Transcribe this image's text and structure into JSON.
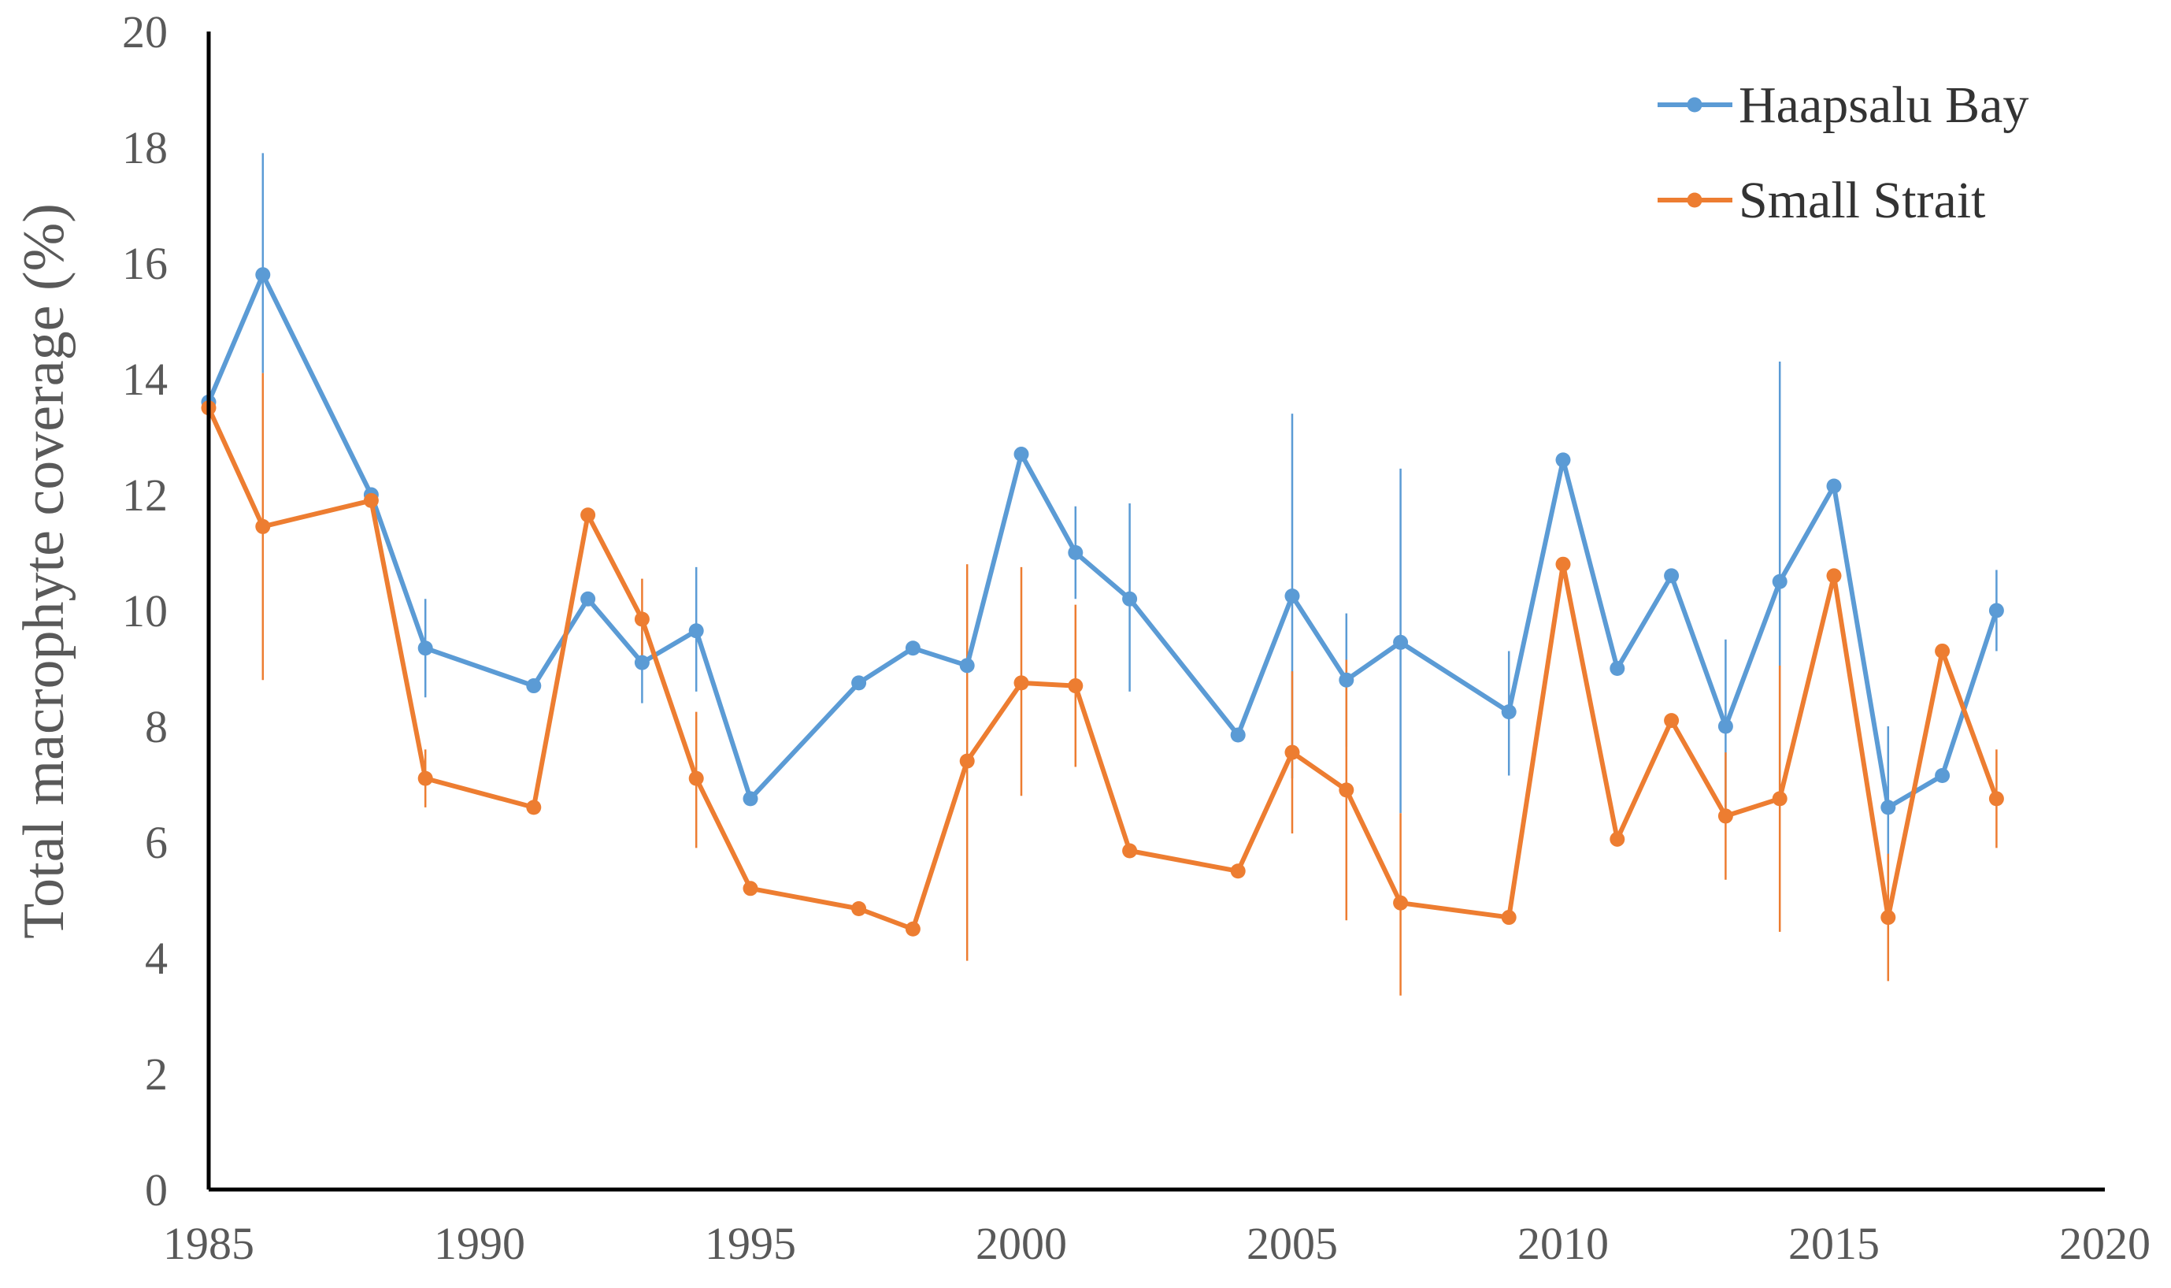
{
  "chart_data": {
    "type": "line",
    "title": "",
    "xlabel": "",
    "ylabel": "Total macrophyte coverage  (%)",
    "xlim": [
      1985,
      2020
    ],
    "ylim": [
      0,
      20
    ],
    "x_ticks": [
      "1985",
      "1990",
      "1995",
      "2000",
      "2005",
      "2010",
      "2015",
      "2020"
    ],
    "y_ticks": [
      "0",
      "2",
      "4",
      "6",
      "8",
      "10",
      "12",
      "14",
      "16",
      "18",
      "20"
    ],
    "grid": false,
    "legend_position": "top-right",
    "error_bars": true,
    "series": [
      {
        "name": "Haapsalu Bay",
        "color": "#5B9BD5",
        "points": [
          {
            "x": 1985,
            "y": 13.6
          },
          {
            "x": 1986,
            "y": 15.8,
            "err_low": 14.1,
            "err_high": 17.9
          },
          {
            "x": 1988,
            "y": 12.0
          },
          {
            "x": 1989,
            "y": 9.35,
            "err_low": 8.5,
            "err_high": 10.2
          },
          {
            "x": 1991,
            "y": 8.7
          },
          {
            "x": 1992,
            "y": 10.2
          },
          {
            "x": 1993,
            "y": 9.1,
            "err_low": 8.4,
            "err_high": 9.8
          },
          {
            "x": 1994,
            "y": 9.65,
            "err_low": 8.6,
            "err_high": 10.75
          },
          {
            "x": 1995,
            "y": 6.75
          },
          {
            "x": 1997,
            "y": 8.75
          },
          {
            "x": 1998,
            "y": 9.35
          },
          {
            "x": 1999,
            "y": 9.05
          },
          {
            "x": 2000,
            "y": 12.7
          },
          {
            "x": 2001,
            "y": 11.0,
            "err_low": 10.2,
            "err_high": 11.8
          },
          {
            "x": 2002,
            "y": 10.2,
            "err_low": 8.6,
            "err_high": 11.85
          },
          {
            "x": 2004,
            "y": 7.85
          },
          {
            "x": 2005,
            "y": 10.25,
            "err_low": 7.1,
            "err_high": 13.4
          },
          {
            "x": 2006,
            "y": 8.8,
            "err_low": 7.65,
            "err_high": 9.95
          },
          {
            "x": 2007,
            "y": 9.45,
            "err_low": 6.5,
            "err_high": 12.45
          },
          {
            "x": 2009,
            "y": 8.25,
            "err_low": 7.15,
            "err_high": 9.3
          },
          {
            "x": 2010,
            "y": 12.6
          },
          {
            "x": 2011,
            "y": 9.0
          },
          {
            "x": 2012,
            "y": 10.6
          },
          {
            "x": 2013,
            "y": 8.0,
            "err_low": 6.5,
            "err_high": 9.5
          },
          {
            "x": 2014,
            "y": 10.5,
            "err_low": 6.7,
            "err_high": 14.3
          },
          {
            "x": 2015,
            "y": 12.15
          },
          {
            "x": 2016,
            "y": 6.6,
            "err_low": 5.2,
            "err_high": 8.0
          },
          {
            "x": 2017,
            "y": 7.15
          },
          {
            "x": 2018,
            "y": 10.0,
            "err_low": 9.3,
            "err_high": 10.7
          }
        ]
      },
      {
        "name": "Small Strait",
        "color": "#ED7D31",
        "points": [
          {
            "x": 1985,
            "y": 13.5
          },
          {
            "x": 1986,
            "y": 11.45,
            "err_low": 8.8,
            "err_high": 14.1
          },
          {
            "x": 1988,
            "y": 11.9
          },
          {
            "x": 1989,
            "y": 7.1,
            "err_low": 6.6,
            "err_high": 7.6
          },
          {
            "x": 1991,
            "y": 6.6
          },
          {
            "x": 1992,
            "y": 11.65
          },
          {
            "x": 1993,
            "y": 9.85,
            "err_low": 9.1,
            "err_high": 10.55
          },
          {
            "x": 1994,
            "y": 7.1,
            "err_low": 5.9,
            "err_high": 8.25
          },
          {
            "x": 1995,
            "y": 5.2
          },
          {
            "x": 1997,
            "y": 4.85
          },
          {
            "x": 1998,
            "y": 4.5
          },
          {
            "x": 1999,
            "y": 7.4,
            "err_low": 3.95,
            "err_high": 10.8
          },
          {
            "x": 2000,
            "y": 8.75,
            "err_low": 6.8,
            "err_high": 10.75
          },
          {
            "x": 2001,
            "y": 8.7,
            "err_low": 7.3,
            "err_high": 10.1
          },
          {
            "x": 2002,
            "y": 5.85
          },
          {
            "x": 2004,
            "y": 5.5
          },
          {
            "x": 2005,
            "y": 7.55,
            "err_low": 6.15,
            "err_high": 8.95
          },
          {
            "x": 2006,
            "y": 6.9,
            "err_low": 4.65,
            "err_high": 9.15
          },
          {
            "x": 2007,
            "y": 4.95,
            "err_low": 3.35,
            "err_high": 6.5
          },
          {
            "x": 2009,
            "y": 4.7
          },
          {
            "x": 2010,
            "y": 10.8
          },
          {
            "x": 2011,
            "y": 6.05
          },
          {
            "x": 2012,
            "y": 8.1
          },
          {
            "x": 2013,
            "y": 6.45,
            "err_low": 5.35,
            "err_high": 7.55
          },
          {
            "x": 2014,
            "y": 6.75,
            "err_low": 4.45,
            "err_high": 9.05
          },
          {
            "x": 2015,
            "y": 10.6
          },
          {
            "x": 2016,
            "y": 4.7,
            "err_low": 3.6,
            "err_high": 5.8
          },
          {
            "x": 2017,
            "y": 9.3
          },
          {
            "x": 2018,
            "y": 6.75,
            "err_low": 5.9,
            "err_high": 7.6
          }
        ]
      }
    ]
  }
}
